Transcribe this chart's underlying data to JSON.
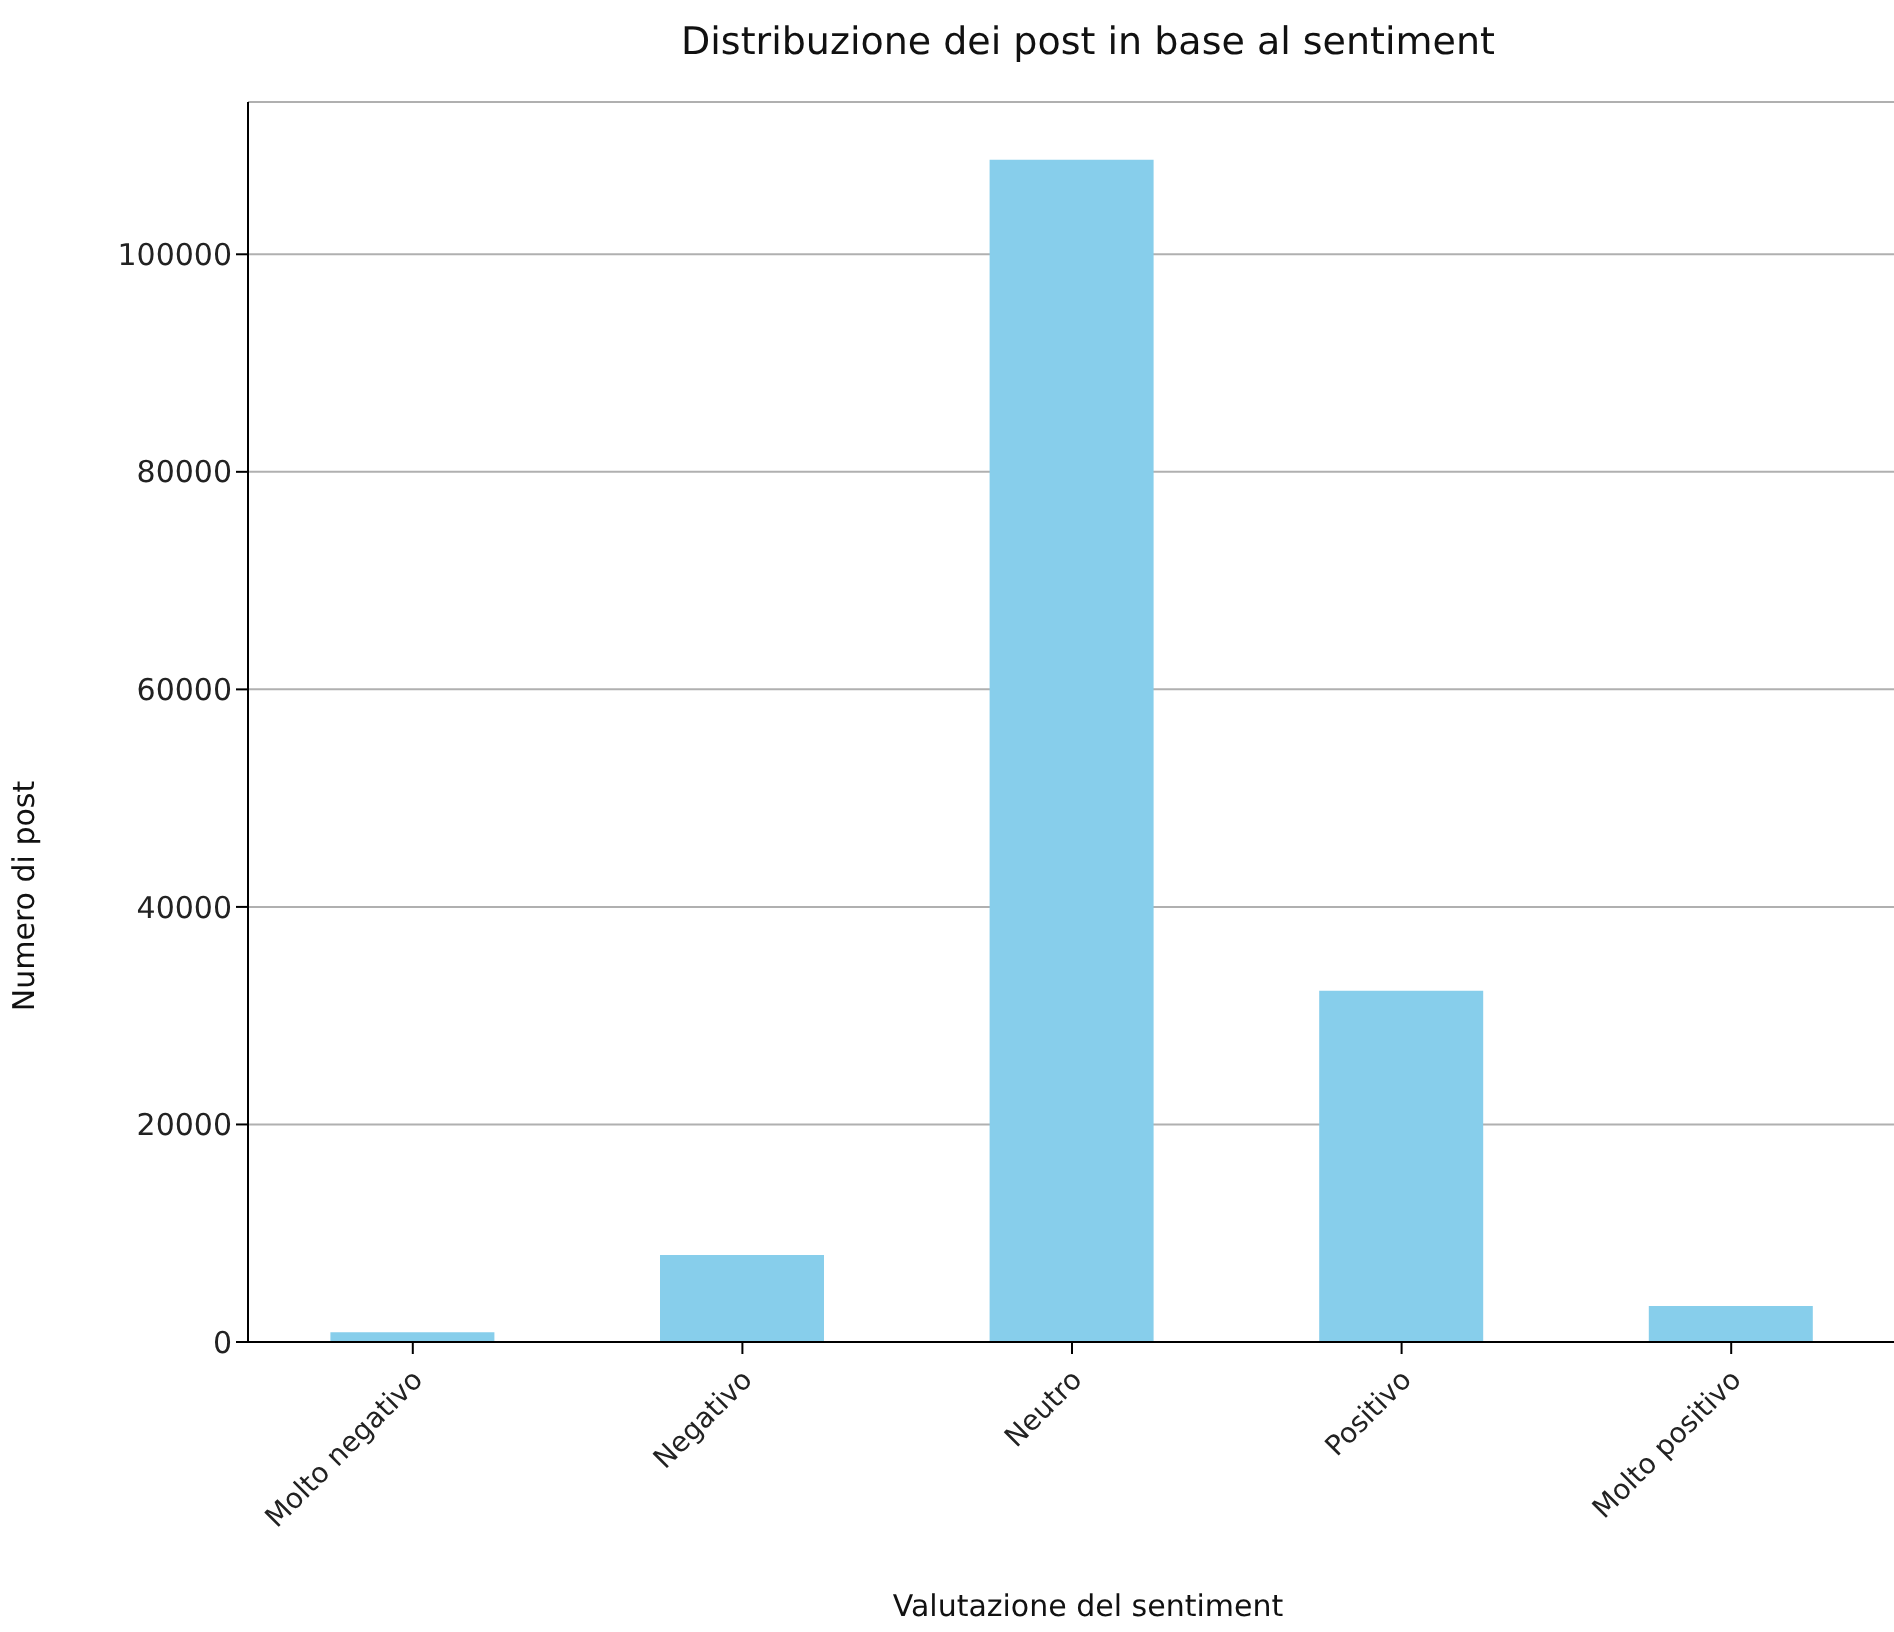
{
  "chart_data": {
    "type": "bar",
    "title": "Distribuzione dei post in base al sentiment",
    "xlabel": "Valutazione del sentiment",
    "ylabel": "Numero di post",
    "categories": [
      "Molto negativo",
      "Negativo",
      "Neutro",
      "Positivo",
      "Molto positivo"
    ],
    "values": [
      900,
      8000,
      108700,
      32300,
      3300
    ],
    "color": "#87ceeb",
    "ylim": [
      0,
      114000
    ],
    "yticks": [
      0,
      20000,
      40000,
      60000,
      80000,
      100000
    ],
    "grid": "y"
  }
}
